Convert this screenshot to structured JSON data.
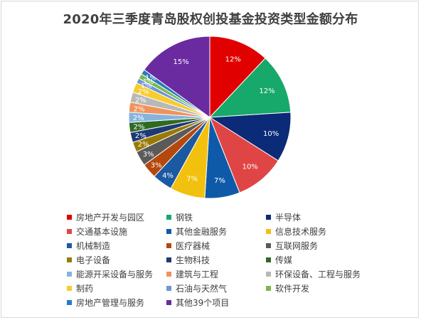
{
  "chart_data": {
    "type": "pie",
    "title": "2020年三季度青岛股权创投基金投资类型金额分布",
    "start_angle_deg": 0,
    "direction": "clockwise",
    "slices": [
      {
        "name": "房地产开发与园区",
        "value": 12,
        "label": "12%",
        "color": "#e00000"
      },
      {
        "name": "钢铁",
        "value": 12,
        "label": "12%",
        "color": "#17a86b"
      },
      {
        "name": "半导体",
        "value": 10,
        "label": "10%",
        "color": "#0b2a78"
      },
      {
        "name": "交通基本设施",
        "value": 10,
        "label": "10%",
        "color": "#e04545"
      },
      {
        "name": "其他金融服务",
        "value": 7,
        "label": "7%",
        "color": "#0f5aa8"
      },
      {
        "name": "信息技术服务",
        "value": 7,
        "label": "7%",
        "color": "#f2c10e"
      },
      {
        "name": "机械制造",
        "value": 4,
        "label": "4%",
        "color": "#1b5aa0"
      },
      {
        "name": "医疗器械",
        "value": 3,
        "label": "3%",
        "color": "#b5480c"
      },
      {
        "name": "互联网服务",
        "value": 3,
        "label": "3%",
        "color": "#5a5a5a"
      },
      {
        "name": "电子设备",
        "value": 2,
        "label": "2%",
        "color": "#9a7a06"
      },
      {
        "name": "生物科技",
        "value": 2,
        "label": "2%",
        "color": "#1f3a73"
      },
      {
        "name": "传媒",
        "value": 2,
        "label": "2%",
        "color": "#2f6a24"
      },
      {
        "name": "能源开采设备与服务",
        "value": 2,
        "label": "2%",
        "color": "#86b4df"
      },
      {
        "name": "建筑与工程",
        "value": 2,
        "label": "2%",
        "color": "#f0935a"
      },
      {
        "name": "环保设备、工程与服务",
        "value": 2,
        "label": "2%",
        "color": "#b8b8b8"
      },
      {
        "name": "制药",
        "value": 2,
        "label": "2%",
        "color": "#f6cc2f"
      },
      {
        "name": "石油与天然气",
        "value": 1,
        "label": "1%",
        "color": "#6f95d6"
      },
      {
        "name": "软件开发",
        "value": 1,
        "label": "1%",
        "color": "#79b84f"
      },
      {
        "name": "房地产管理与服务",
        "value": 1,
        "label": "1%",
        "color": "#2b7bbf"
      },
      {
        "name": "其他39个项目",
        "value": 15,
        "label": "15%",
        "color": "#6a2aa0"
      }
    ]
  }
}
